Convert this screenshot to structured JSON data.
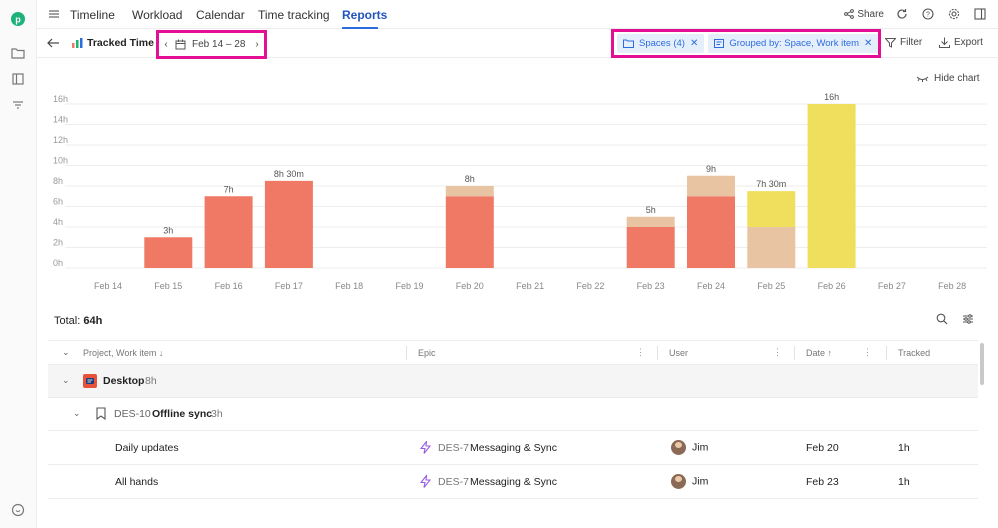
{
  "nav": {
    "tabs": [
      "Timeline",
      "Workload",
      "Calendar",
      "Time tracking",
      "Reports"
    ],
    "active_tab": "Reports",
    "share_label": "Share"
  },
  "toolbar": {
    "title": "Tracked Time",
    "date_range": "Feb 14 – 28",
    "chips": [
      {
        "label": "Spaces (4)"
      },
      {
        "label": "Grouped by: Space, Work item"
      }
    ],
    "filter_label": "Filter",
    "export_label": "Export"
  },
  "hide_chart_label": "Hide chart",
  "colors": {
    "accent": "#2d6cdf",
    "highlight_border": "#e40f93",
    "bar_red": "#f07965",
    "bar_peach": "#e8c4a3",
    "bar_yellow": "#f0df5c"
  },
  "chart_data": {
    "type": "bar",
    "stacked": true,
    "categories": [
      "Feb 14",
      "Feb 15",
      "Feb 16",
      "Feb 17",
      "Feb 18",
      "Feb 19",
      "Feb 20",
      "Feb 21",
      "Feb 22",
      "Feb 23",
      "Feb 24",
      "Feb 25",
      "Feb 26",
      "Feb 27",
      "Feb 28"
    ],
    "yticks": [
      "0h",
      "2h",
      "4h",
      "6h",
      "8h",
      "10h",
      "12h",
      "14h",
      "16h"
    ],
    "ylim": [
      0,
      16
    ],
    "unit": "hours",
    "grid": true,
    "series": [
      {
        "color": "#f07965",
        "values": [
          0,
          3,
          7,
          8.5,
          0,
          0,
          7,
          0,
          0,
          4,
          7,
          0,
          0,
          0,
          0
        ]
      },
      {
        "color": "#e8c4a3",
        "values": [
          0,
          0,
          0,
          0,
          0,
          0,
          1,
          0,
          0,
          1,
          2,
          4,
          0,
          0,
          0
        ]
      },
      {
        "color": "#f0df5c",
        "values": [
          0,
          0,
          0,
          0,
          0,
          0,
          0,
          0,
          0,
          0,
          0,
          3.5,
          16,
          0,
          0
        ]
      }
    ],
    "bar_labels": [
      "",
      "3h",
      "7h",
      "8h 30m",
      "",
      "",
      "8h",
      "",
      "",
      "5h",
      "9h",
      "7h 30m",
      "16h",
      "",
      ""
    ]
  },
  "table": {
    "total_label": "Total:",
    "total_value": "64h",
    "columns": [
      "Project, Work item",
      "Epic",
      "User",
      "Date",
      "Tracked"
    ],
    "group": {
      "name": "Desktop",
      "hours": "8h"
    },
    "subgroup": {
      "key": "DES-10",
      "name": "Offline sync",
      "hours": "3h"
    },
    "rows": [
      {
        "name": "Daily updates",
        "epic_key": "DES-7",
        "epic_name": "Messaging & Sync",
        "user": "Jim",
        "date": "Feb 20",
        "tracked": "1h"
      },
      {
        "name": "All hands",
        "epic_key": "DES-7",
        "epic_name": "Messaging & Sync",
        "user": "Jim",
        "date": "Feb 23",
        "tracked": "1h"
      }
    ]
  }
}
